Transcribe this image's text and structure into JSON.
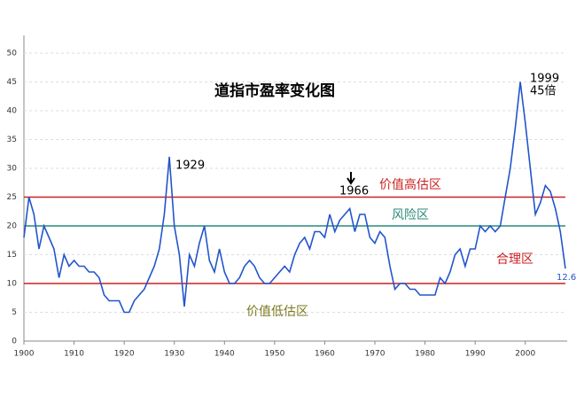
{
  "chart_data": {
    "type": "line",
    "title": "道指市盈率变化图",
    "x": [
      1900,
      1901,
      1902,
      1903,
      1904,
      1905,
      1906,
      1907,
      1908,
      1909,
      1910,
      1911,
      1912,
      1913,
      1914,
      1915,
      1916,
      1917,
      1918,
      1919,
      1920,
      1921,
      1922,
      1923,
      1924,
      1925,
      1926,
      1927,
      1928,
      1929,
      1930,
      1931,
      1932,
      1933,
      1934,
      1935,
      1936,
      1937,
      1938,
      1939,
      1940,
      1941,
      1942,
      1943,
      1944,
      1945,
      1946,
      1947,
      1948,
      1949,
      1950,
      1951,
      1952,
      1953,
      1954,
      1955,
      1956,
      1957,
      1958,
      1959,
      1960,
      1961,
      1962,
      1963,
      1964,
      1965,
      1966,
      1967,
      1968,
      1969,
      1970,
      1971,
      1972,
      1973,
      1974,
      1975,
      1976,
      1977,
      1978,
      1979,
      1980,
      1981,
      1982,
      1983,
      1984,
      1985,
      1986,
      1987,
      1988,
      1989,
      1990,
      1991,
      1992,
      1993,
      1994,
      1995,
      1996,
      1997,
      1998,
      1999,
      2000,
      2001,
      2002,
      2003,
      2004,
      2005,
      2006,
      2007,
      2008
    ],
    "values": [
      18,
      25,
      22,
      16,
      20,
      18,
      16,
      11,
      15,
      13,
      14,
      13,
      13,
      12,
      12,
      11,
      8,
      7,
      7,
      7,
      5,
      5,
      7,
      8,
      9,
      11,
      13,
      16,
      22,
      32,
      20,
      15,
      6,
      15,
      13,
      17,
      20,
      14,
      12,
      16,
      12,
      10,
      10,
      11,
      13,
      14,
      13,
      11,
      10,
      10,
      11,
      12,
      13,
      12,
      15,
      17,
      18,
      16,
      19,
      19,
      18,
      22,
      19,
      21,
      22,
      23,
      19,
      22,
      22,
      18,
      17,
      19,
      18,
      13,
      9,
      10,
      10,
      9,
      9,
      8,
      8,
      8,
      8,
      11,
      10,
      12,
      15,
      16,
      13,
      16,
      16,
      20,
      19,
      20,
      19,
      20,
      25,
      30,
      37,
      45,
      38,
      30,
      22,
      24,
      27,
      26,
      23,
      19,
      12.6
    ],
    "color": "#2255cc",
    "xlim": [
      1900,
      2008
    ],
    "xticks": [
      1900,
      1910,
      1920,
      1930,
      1940,
      1950,
      1960,
      1970,
      1980,
      1990,
      2000
    ],
    "ylim": [
      0,
      50
    ],
    "yticks": [
      0,
      5,
      10,
      15,
      20,
      25,
      30,
      35,
      40,
      45,
      50
    ],
    "grid": true,
    "reference_lines": [
      {
        "value": 25,
        "color": "#cc2222"
      },
      {
        "value": 20,
        "color": "#2a8a7a"
      },
      {
        "value": 10,
        "color": "#cc2222"
      }
    ],
    "annotations": [
      "价值高估区",
      "风险区",
      "合理区",
      "价值低估区",
      "1929",
      "1966",
      "1999",
      "45倍",
      "12.6"
    ]
  }
}
